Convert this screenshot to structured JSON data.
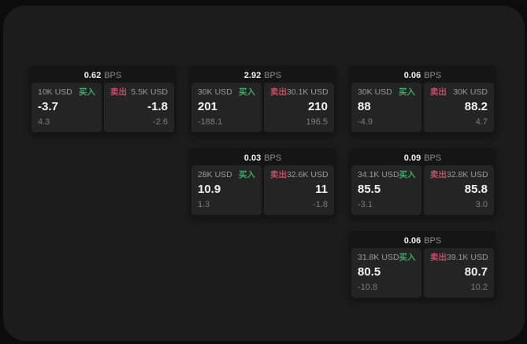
{
  "labels": {
    "bps_unit": "BPS",
    "buy": "买入",
    "sell": "卖出"
  },
  "colors": {
    "backdrop": "#0c0c0c",
    "window_bg": "#1c1c1c",
    "card_bg": "#151515",
    "panel_bg": "#242424",
    "buy_green": "#40a868",
    "sell_red": "#c14f63",
    "primary_text": "#f2f2f2",
    "muted_text": "#9a9a9a"
  },
  "cards": [
    {
      "bps": "0.62",
      "grid": {
        "row": 1,
        "col": 1
      },
      "buy": {
        "amount": "10K USD",
        "price": "-3.7",
        "sub": "4.3"
      },
      "sell": {
        "amount": "5.5K USD",
        "price": "-1.8",
        "sub": "-2.6"
      }
    },
    {
      "bps": "2.92",
      "grid": {
        "row": 1,
        "col": 2
      },
      "buy": {
        "amount": "30K USD",
        "price": "201",
        "sub": "-188.1"
      },
      "sell": {
        "amount": "30.1K USD",
        "price": "210",
        "sub": "196.5"
      }
    },
    {
      "bps": "0.06",
      "grid": {
        "row": 1,
        "col": 3
      },
      "buy": {
        "amount": "30K USD",
        "price": "88",
        "sub": "-4.9"
      },
      "sell": {
        "amount": "30K USD",
        "price": "88.2",
        "sub": "4.7"
      }
    },
    {
      "bps": "0.03",
      "grid": {
        "row": 2,
        "col": 2
      },
      "buy": {
        "amount": "28K USD",
        "price": "10.9",
        "sub": "1.3"
      },
      "sell": {
        "amount": "32.6K USD",
        "price": "11",
        "sub": "-1.8"
      }
    },
    {
      "bps": "0.09",
      "grid": {
        "row": 2,
        "col": 3
      },
      "buy": {
        "amount": "34.1K USD",
        "price": "85.5",
        "sub": "-3.1"
      },
      "sell": {
        "amount": "32.8K USD",
        "price": "85.8",
        "sub": "3.0"
      }
    },
    {
      "bps": "0.06",
      "grid": {
        "row": 3,
        "col": 3
      },
      "buy": {
        "amount": "31.8K USD",
        "price": "80.5",
        "sub": "-10.8"
      },
      "sell": {
        "amount": "39.1K USD",
        "price": "80.7",
        "sub": "10.2"
      }
    }
  ]
}
